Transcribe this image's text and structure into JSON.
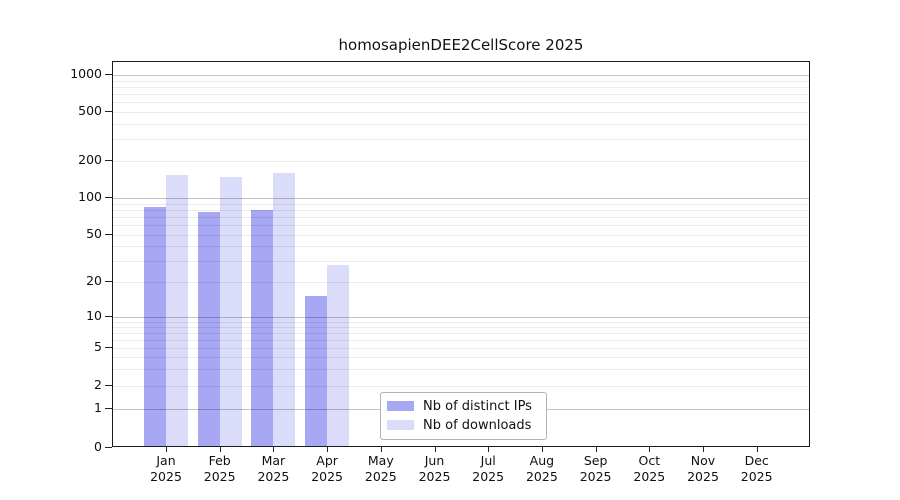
{
  "title": "homosapienDEE2CellScore 2025",
  "chart_data": {
    "type": "bar",
    "title": "homosapienDEE2CellScore 2025",
    "categories": [
      {
        "month": "Jan",
        "year": "2025"
      },
      {
        "month": "Feb",
        "year": "2025"
      },
      {
        "month": "Mar",
        "year": "2025"
      },
      {
        "month": "Apr",
        "year": "2025"
      },
      {
        "month": "May",
        "year": "2025"
      },
      {
        "month": "Jun",
        "year": "2025"
      },
      {
        "month": "Jul",
        "year": "2025"
      },
      {
        "month": "Aug",
        "year": "2025"
      },
      {
        "month": "Sep",
        "year": "2025"
      },
      {
        "month": "Oct",
        "year": "2025"
      },
      {
        "month": "Nov",
        "year": "2025"
      },
      {
        "month": "Dec",
        "year": "2025"
      }
    ],
    "series": [
      {
        "name": "Nb of distinct IPs",
        "color": "#a7a7f3",
        "values": [
          83,
          75,
          78,
          15,
          0,
          0,
          0,
          0,
          0,
          0,
          0,
          0
        ]
      },
      {
        "name": "Nb of downloads",
        "color": "#dbdbfa",
        "values": [
          151,
          145,
          157,
          27,
          0,
          0,
          0,
          0,
          0,
          0,
          0,
          0
        ]
      }
    ],
    "y_ticks": [
      1000,
      500,
      200,
      100,
      50,
      20,
      10,
      5,
      2,
      1,
      0
    ],
    "y_scale": "symlog",
    "ylim": [
      0,
      1400
    ],
    "grid": "horizontal major lines at decades, faint minor log lines",
    "legend_position": "inside bottom-center",
    "xlabel": "",
    "ylabel": ""
  }
}
